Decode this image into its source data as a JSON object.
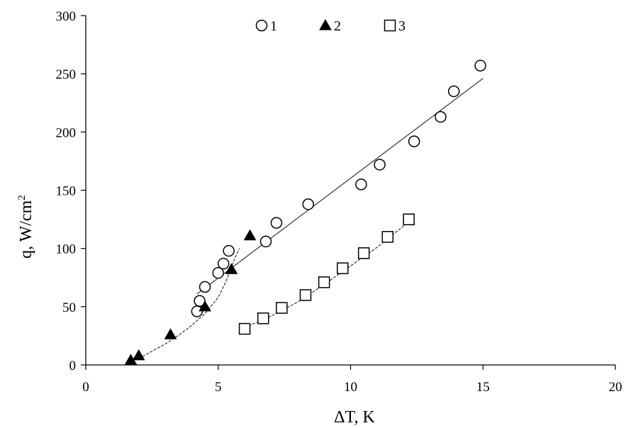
{
  "chart_data": {
    "type": "scatter",
    "title": "",
    "xlabel": "ΔT, K",
    "ylabel_main": "q, W/cm",
    "ylabel_sup": "2",
    "xlim": [
      0,
      20
    ],
    "ylim": [
      0,
      300
    ],
    "xticks": [
      0,
      5,
      10,
      15,
      20
    ],
    "yticks": [
      0,
      50,
      100,
      150,
      200,
      250,
      300
    ],
    "grid": false,
    "legend_position": "top-center",
    "series": [
      {
        "name": "1",
        "marker": "open-circle",
        "points": [
          [
            4.2,
            46
          ],
          [
            4.3,
            55
          ],
          [
            4.5,
            67
          ],
          [
            5.0,
            79
          ],
          [
            5.2,
            87
          ],
          [
            5.4,
            98
          ],
          [
            6.8,
            106
          ],
          [
            7.2,
            122
          ],
          [
            8.4,
            138
          ],
          [
            10.4,
            155
          ],
          [
            11.1,
            172
          ],
          [
            12.4,
            192
          ],
          [
            13.4,
            213
          ],
          [
            13.9,
            235
          ],
          [
            14.9,
            257
          ]
        ],
        "fit": [
          [
            4.2,
            61
          ],
          [
            15,
            246
          ]
        ]
      },
      {
        "name": "2",
        "marker": "filled-triangle",
        "points": [
          [
            1.7,
            4
          ],
          [
            2.0,
            8
          ],
          [
            3.2,
            26
          ],
          [
            4.5,
            50
          ],
          [
            5.5,
            82
          ],
          [
            6.2,
            111
          ]
        ],
        "fit": [
          [
            1.7,
            3
          ],
          [
            2.2,
            8
          ],
          [
            3.0,
            18
          ],
          [
            3.6,
            27
          ],
          [
            4.0,
            34
          ],
          [
            4.5,
            44
          ],
          [
            5.0,
            58
          ],
          [
            5.3,
            72
          ],
          [
            5.6,
            90
          ],
          [
            5.8,
            100
          ]
        ]
      },
      {
        "name": "3",
        "marker": "open-square",
        "points": [
          [
            6.0,
            31
          ],
          [
            6.7,
            40
          ],
          [
            7.4,
            49
          ],
          [
            8.3,
            60
          ],
          [
            9.0,
            71
          ],
          [
            9.7,
            83
          ],
          [
            10.5,
            96
          ],
          [
            11.4,
            110
          ],
          [
            12.2,
            125
          ]
        ],
        "fit": [
          [
            6.0,
            32
          ],
          [
            7.0,
            42
          ],
          [
            8.0,
            54
          ],
          [
            9.0,
            69
          ],
          [
            10.0,
            85
          ],
          [
            11.0,
            101
          ],
          [
            12.2,
            123
          ]
        ]
      }
    ]
  }
}
